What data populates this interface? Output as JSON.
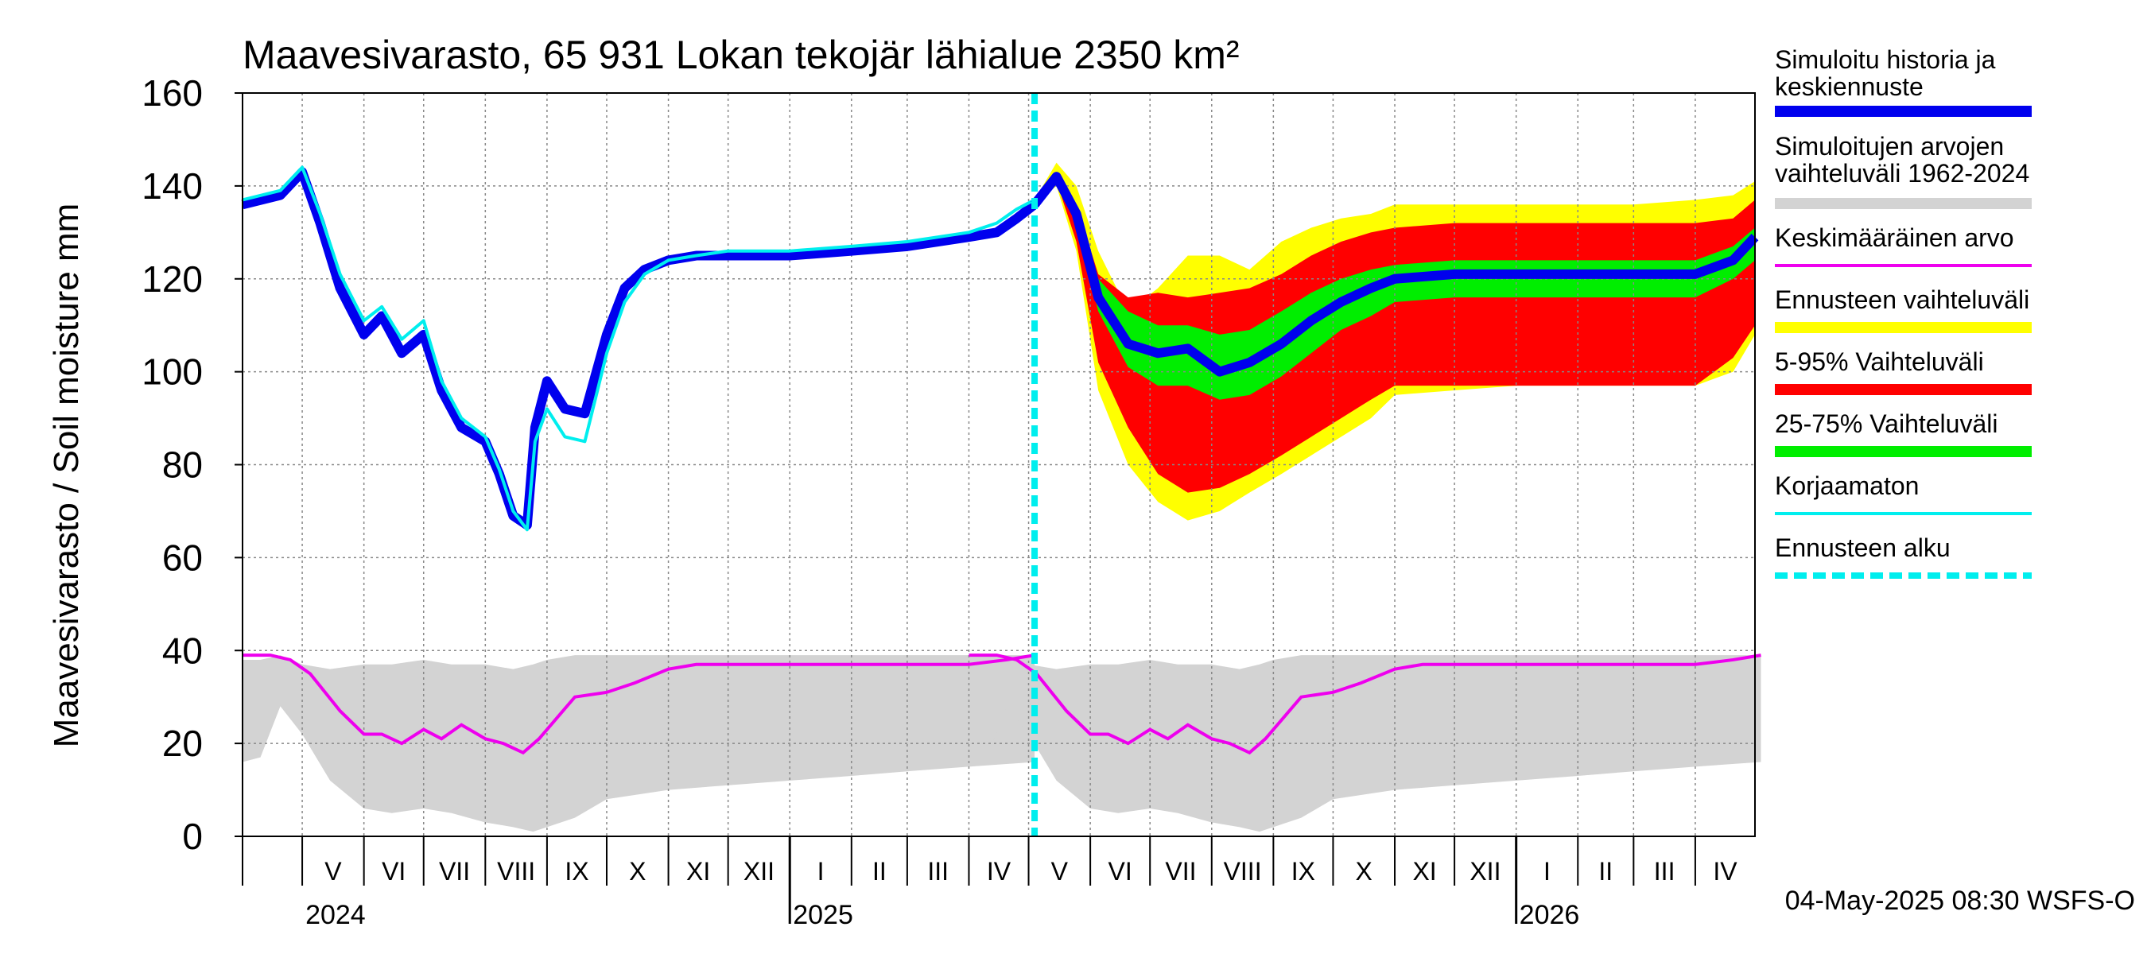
{
  "chart_data": {
    "type": "area",
    "title": "Maavesivarasto, 65 931 Lokan tekojär lähialue 2350 km²",
    "ylabel": "Maavesivarasto / Soil moisture   mm",
    "ylim": [
      0,
      160
    ],
    "yticks": [
      0,
      20,
      40,
      60,
      80,
      100,
      120,
      140,
      160
    ],
    "xlim": [
      "2024-04-01",
      "2026-05-01"
    ],
    "forecast_start": "2025-05-04",
    "grid": true,
    "months": [
      {
        "label": "V",
        "start": "2024-05-01"
      },
      {
        "label": "VI",
        "start": "2024-06-01"
      },
      {
        "label": "VII",
        "start": "2024-07-01"
      },
      {
        "label": "VIII",
        "start": "2024-08-01"
      },
      {
        "label": "IX",
        "start": "2024-09-01"
      },
      {
        "label": "X",
        "start": "2024-10-01"
      },
      {
        "label": "XI",
        "start": "2024-11-01"
      },
      {
        "label": "XII",
        "start": "2024-12-01"
      },
      {
        "label": "I",
        "start": "2025-01-01"
      },
      {
        "label": "II",
        "start": "2025-02-01"
      },
      {
        "label": "III",
        "start": "2025-03-01"
      },
      {
        "label": "IV",
        "start": "2025-04-01"
      },
      {
        "label": "V",
        "start": "2025-05-01"
      },
      {
        "label": "VI",
        "start": "2025-06-01"
      },
      {
        "label": "VII",
        "start": "2025-07-01"
      },
      {
        "label": "VIII",
        "start": "2025-08-01"
      },
      {
        "label": "IX",
        "start": "2025-09-01"
      },
      {
        "label": "X",
        "start": "2025-10-01"
      },
      {
        "label": "XI",
        "start": "2025-11-01"
      },
      {
        "label": "XII",
        "start": "2025-12-01"
      },
      {
        "label": "I",
        "start": "2026-01-01"
      },
      {
        "label": "II",
        "start": "2026-02-01"
      },
      {
        "label": "III",
        "start": "2026-03-01"
      },
      {
        "label": "IV",
        "start": "2026-04-01"
      }
    ],
    "years": [
      {
        "label": "2024",
        "at": "2024-05-01"
      },
      {
        "label": "2025",
        "at": "2025-01-01"
      },
      {
        "label": "2026",
        "at": "2026-01-01"
      }
    ],
    "legend": [
      {
        "label": "Simuloitu historia ja keskiennuste",
        "color": "#0000ee",
        "style": "thick"
      },
      {
        "label": "Simuloitujen arvojen vaihteluväli 1962-2024",
        "color": "#d3d3d3",
        "style": "thick"
      },
      {
        "label": "Keskimääräinen arvo",
        "color": "#ee00ee",
        "style": "thin"
      },
      {
        "label": "Ennusteen vaihteluväli",
        "color": "#ffff00",
        "style": "thick"
      },
      {
        "label": "5-95% Vaihteluväli",
        "color": "#ff0000",
        "style": "thick"
      },
      {
        "label": "25-75% Vaihteluväli",
        "color": "#00ee00",
        "style": "thick"
      },
      {
        "label": "Korjaamaton",
        "color": "#00eeee",
        "style": "thin"
      },
      {
        "label": "Ennusteen alku",
        "color": "#00eeee",
        "style": "dashed"
      }
    ],
    "footer": "04-May-2025 08:30 WSFS-O",
    "series": {
      "history_range": {
        "x": [
          "2024-04-01",
          "2024-04-10",
          "2024-04-20",
          "2024-05-01",
          "2024-05-15",
          "2024-06-01",
          "2024-06-15",
          "2024-07-01",
          "2024-07-15",
          "2024-08-01",
          "2024-08-15",
          "2024-08-25",
          "2024-09-01",
          "2024-09-15",
          "2024-10-01",
          "2024-11-01",
          "2024-12-01",
          "2025-01-01",
          "2025-02-01",
          "2025-03-01",
          "2025-04-01",
          "2025-05-04"
        ],
        "low": [
          16,
          17,
          28,
          22,
          12,
          6,
          5,
          6,
          5,
          3,
          2,
          1,
          2,
          4,
          8,
          10,
          11,
          12,
          13,
          14,
          15,
          16
        ],
        "high": [
          38,
          38,
          39,
          37,
          36,
          37,
          37,
          38,
          37,
          37,
          36,
          37,
          38,
          39,
          39,
          39,
          39,
          39,
          39,
          39,
          39,
          39
        ]
      },
      "mean": {
        "x": [
          "2024-04-01",
          "2024-04-15",
          "2024-04-25",
          "2024-05-05",
          "2024-05-20",
          "2024-06-01",
          "2024-06-10",
          "2024-06-20",
          "2024-07-01",
          "2024-07-10",
          "2024-07-20",
          "2024-08-01",
          "2024-08-10",
          "2024-08-20",
          "2024-08-28",
          "2024-09-05",
          "2024-09-15",
          "2024-10-01",
          "2024-10-15",
          "2024-11-01",
          "2024-11-15",
          "2024-12-01",
          "2025-01-01",
          "2025-02-01",
          "2025-03-01",
          "2025-04-01",
          "2025-04-20",
          "2025-05-04"
        ],
        "y": [
          39,
          39,
          38,
          35,
          27,
          22,
          22,
          20,
          23,
          21,
          24,
          21,
          20,
          18,
          21,
          25,
          30,
          31,
          33,
          36,
          37,
          37,
          37,
          37,
          37,
          37,
          38,
          39
        ]
      },
      "simulated_history": {
        "x": [
          "2024-04-01",
          "2024-04-20",
          "2024-05-01",
          "2024-05-10",
          "2024-05-20",
          "2024-06-01",
          "2024-06-10",
          "2024-06-20",
          "2024-07-01",
          "2024-07-10",
          "2024-07-20",
          "2024-08-01",
          "2024-08-08",
          "2024-08-15",
          "2024-08-22",
          "2024-08-26",
          "2024-09-01",
          "2024-09-10",
          "2024-09-20",
          "2024-10-01",
          "2024-10-10",
          "2024-10-20",
          "2024-11-01",
          "2024-11-15",
          "2024-12-01",
          "2025-01-01",
          "2025-02-01",
          "2025-03-01",
          "2025-04-01",
          "2025-04-15",
          "2025-04-25",
          "2025-05-04"
        ],
        "y": [
          136,
          138,
          143,
          132,
          118,
          108,
          112,
          104,
          108,
          96,
          88,
          85,
          78,
          69,
          67,
          88,
          98,
          92,
          91,
          108,
          118,
          122,
          124,
          125,
          125,
          125,
          126,
          127,
          129,
          130,
          133,
          136
        ]
      },
      "uncorrected": {
        "x": [
          "2024-04-01",
          "2024-04-20",
          "2024-05-01",
          "2024-05-10",
          "2024-05-20",
          "2024-06-01",
          "2024-06-10",
          "2024-06-20",
          "2024-07-01",
          "2024-07-10",
          "2024-07-20",
          "2024-08-01",
          "2024-08-08",
          "2024-08-15",
          "2024-08-22",
          "2024-08-26",
          "2024-09-01",
          "2024-09-10",
          "2024-09-20",
          "2024-10-01",
          "2024-10-10",
          "2024-10-20",
          "2024-11-01",
          "2024-11-15",
          "2024-12-01",
          "2025-01-01",
          "2025-02-01",
          "2025-03-01",
          "2025-04-01",
          "2025-04-15",
          "2025-04-25",
          "2025-05-04"
        ],
        "y": [
          137,
          139,
          144,
          134,
          121,
          111,
          114,
          107,
          111,
          98,
          90,
          86,
          79,
          70,
          66,
          85,
          92,
          86,
          85,
          104,
          115,
          121,
          124,
          125,
          126,
          126,
          127,
          128,
          130,
          132,
          135,
          137
        ]
      },
      "forecast_range": {
        "x": [
          "2025-05-04",
          "2025-05-15",
          "2025-05-25",
          "2025-06-05",
          "2025-06-20",
          "2025-07-05",
          "2025-07-20",
          "2025-08-05",
          "2025-08-20",
          "2025-09-05",
          "2025-09-20",
          "2025-10-05",
          "2025-10-20",
          "2025-11-01",
          "2025-12-01",
          "2026-01-01",
          "2026-02-01",
          "2026-03-01",
          "2026-04-01",
          "2026-04-20",
          "2026-05-01"
        ],
        "low": [
          136,
          140,
          126,
          96,
          80,
          72,
          68,
          70,
          74,
          78,
          82,
          86,
          90,
          95,
          96,
          97,
          97,
          97,
          97,
          100,
          108
        ],
        "high": [
          137,
          145,
          140,
          126,
          113,
          118,
          125,
          125,
          122,
          128,
          131,
          133,
          134,
          136,
          136,
          136,
          136,
          136,
          137,
          138,
          141
        ]
      },
      "band_5_95": {
        "x": [
          "2025-05-04",
          "2025-05-15",
          "2025-05-25",
          "2025-06-05",
          "2025-06-20",
          "2025-07-05",
          "2025-07-20",
          "2025-08-05",
          "2025-08-20",
          "2025-09-05",
          "2025-09-20",
          "2025-10-05",
          "2025-10-20",
          "2025-11-01",
          "2025-12-01",
          "2026-01-01",
          "2026-02-01",
          "2026-03-01",
          "2026-04-01",
          "2026-04-20",
          "2026-05-01"
        ],
        "low": [
          136,
          141,
          128,
          102,
          88,
          78,
          74,
          75,
          78,
          82,
          86,
          90,
          94,
          97,
          97,
          97,
          97,
          97,
          97,
          103,
          110
        ],
        "high": [
          137,
          143,
          136,
          121,
          116,
          117,
          116,
          117,
          118,
          121,
          125,
          128,
          130,
          131,
          132,
          132,
          132,
          132,
          132,
          133,
          137
        ]
      },
      "band_25_75": {
        "x": [
          "2025-05-04",
          "2025-05-15",
          "2025-05-25",
          "2025-06-05",
          "2025-06-20",
          "2025-07-05",
          "2025-07-20",
          "2025-08-05",
          "2025-08-20",
          "2025-09-05",
          "2025-09-20",
          "2025-10-05",
          "2025-10-20",
          "2025-11-01",
          "2025-12-01",
          "2026-01-01",
          "2026-02-01",
          "2026-03-01",
          "2026-04-01",
          "2026-04-20",
          "2026-05-01"
        ],
        "low": [
          136,
          141,
          132,
          113,
          101,
          97,
          97,
          94,
          95,
          99,
          104,
          109,
          112,
          115,
          116,
          116,
          116,
          116,
          116,
          120,
          124
        ],
        "high": [
          137,
          142,
          135,
          120,
          113,
          110,
          110,
          108,
          109,
          113,
          117,
          120,
          122,
          123,
          124,
          124,
          124,
          124,
          124,
          127,
          131
        ]
      },
      "forecast_median": {
        "x": [
          "2025-05-04",
          "2025-05-15",
          "2025-05-25",
          "2025-06-05",
          "2025-06-20",
          "2025-07-05",
          "2025-07-20",
          "2025-08-05",
          "2025-08-20",
          "2025-09-05",
          "2025-09-20",
          "2025-10-05",
          "2025-10-20",
          "2025-11-01",
          "2025-12-01",
          "2026-01-01",
          "2026-02-01",
          "2026-03-01",
          "2026-04-01",
          "2026-04-20",
          "2026-05-01"
        ],
        "y": [
          136,
          142,
          134,
          116,
          106,
          104,
          105,
          100,
          102,
          106,
          111,
          115,
          118,
          120,
          121,
          121,
          121,
          121,
          121,
          124,
          129
        ]
      }
    }
  }
}
